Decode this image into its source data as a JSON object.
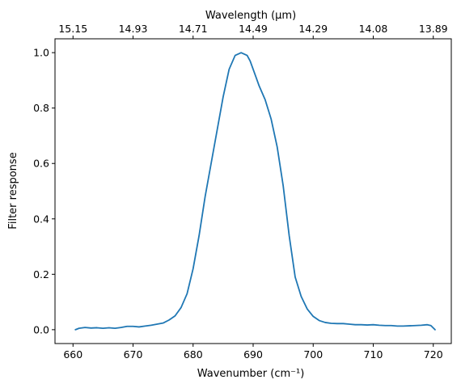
{
  "chart_data": {
    "type": "line",
    "title": "",
    "xlabel": "Wavenumber (cm⁻¹)",
    "ylabel": "Filter response",
    "x2label": "Wavelength (μm)",
    "xlim": [
      657,
      723
    ],
    "ylim": [
      -0.05,
      1.05
    ],
    "grid": false,
    "legend": "none",
    "xticks": [
      660,
      670,
      680,
      690,
      700,
      710,
      720
    ],
    "yticks": [
      0.0,
      0.2,
      0.4,
      0.6,
      0.8,
      1.0
    ],
    "xtick_labels": [
      "660",
      "670",
      "680",
      "690",
      "700",
      "710",
      "720"
    ],
    "ytick_labels": [
      "0.0",
      "0.2",
      "0.4",
      "0.6",
      "0.8",
      "1.0"
    ],
    "x2ticks": [
      {
        "x": 660,
        "label": "15.15"
      },
      {
        "x": 670,
        "label": "14.93"
      },
      {
        "x": 680,
        "label": "14.71"
      },
      {
        "x": 690,
        "label": "14.49"
      },
      {
        "x": 700,
        "label": "14.29"
      },
      {
        "x": 710,
        "label": "14.08"
      },
      {
        "x": 720,
        "label": "13.89"
      }
    ],
    "colors": {
      "line": "#1f77b4",
      "axes": "#000000"
    },
    "series": [
      {
        "x": [
          660.4,
          661.0,
          662.0,
          663.0,
          664.0,
          665.0,
          666.0,
          667.0,
          668.0,
          669.0,
          670.0,
          671.0,
          672.0,
          673.0,
          674.0,
          675.0,
          676.0,
          677.0,
          678.0,
          679.0,
          680.0,
          681.0,
          682.0,
          683.0,
          684.0,
          685.0,
          686.0,
          687.0,
          688.0,
          689.0,
          689.5,
          690.0,
          690.5,
          691.0,
          692.0,
          693.0,
          694.0,
          695.0,
          696.0,
          697.0,
          698.0,
          699.0,
          700.0,
          701.0,
          702.0,
          703.0,
          704.0,
          705.0,
          706.0,
          707.0,
          708.0,
          709.0,
          710.0,
          711.0,
          712.0,
          713.0,
          714.0,
          715.0,
          716.0,
          717.0,
          718.0,
          719.0,
          719.6,
          720.3
        ],
        "y": [
          0.0,
          0.005,
          0.008,
          0.006,
          0.007,
          0.005,
          0.007,
          0.005,
          0.008,
          0.012,
          0.012,
          0.01,
          0.013,
          0.016,
          0.02,
          0.024,
          0.035,
          0.05,
          0.08,
          0.13,
          0.22,
          0.34,
          0.48,
          0.6,
          0.72,
          0.84,
          0.94,
          0.99,
          1.0,
          0.99,
          0.97,
          0.94,
          0.91,
          0.88,
          0.83,
          0.76,
          0.66,
          0.52,
          0.34,
          0.19,
          0.12,
          0.075,
          0.048,
          0.033,
          0.026,
          0.023,
          0.022,
          0.022,
          0.02,
          0.018,
          0.018,
          0.017,
          0.018,
          0.016,
          0.015,
          0.015,
          0.013,
          0.013,
          0.014,
          0.015,
          0.016,
          0.018,
          0.015,
          0.0
        ]
      }
    ]
  }
}
